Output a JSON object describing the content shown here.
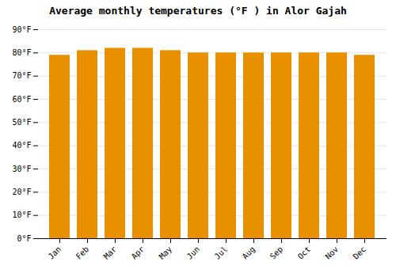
{
  "chart_data": {
    "type": "bar",
    "title": "Average monthly temperatures (°F ) in Alor Gajah",
    "categories": [
      "Jan",
      "Feb",
      "Mar",
      "Apr",
      "May",
      "Jun",
      "Jul",
      "Aug",
      "Sep",
      "Oct",
      "Nov",
      "Dec"
    ],
    "values": [
      79,
      81,
      82,
      82,
      81,
      80,
      80,
      80,
      80,
      80,
      80,
      79
    ],
    "color": "#E89000",
    "ylim": [
      0,
      90
    ],
    "yticks": [
      {
        "value": 0,
        "label": "0°F"
      },
      {
        "value": 10,
        "label": "10°F"
      },
      {
        "value": 20,
        "label": "20°F"
      },
      {
        "value": 30,
        "label": "30°F"
      },
      {
        "value": 40,
        "label": "40°F"
      },
      {
        "value": 50,
        "label": "50°F"
      },
      {
        "value": 60,
        "label": "60°F"
      },
      {
        "value": 70,
        "label": "70°F"
      },
      {
        "value": 80,
        "label": "80°F"
      },
      {
        "value": 90,
        "label": "90°F"
      }
    ],
    "grid": true
  }
}
